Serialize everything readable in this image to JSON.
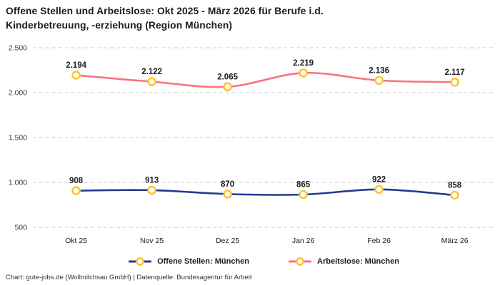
{
  "header": {
    "title_line1": "Offene Stellen und Arbeitslose: Okt 2025 - März 2026 für Berufe i.d.",
    "title_line2": "Kinderbetreuung, -erziehung (Region München)"
  },
  "footer": {
    "text": "Chart: gute-jobs.de (Wollmilchsau GmbH) | Datenquelle: Bundesagentur für Arbeit"
  },
  "chart_data": {
    "type": "line",
    "title": "Offene Stellen und Arbeitslose: Okt 2025 - März 2026 für Berufe i.d. Kinderbetreuung, -erziehung (Region München)",
    "categories": [
      "Okt 25",
      "Nov 25",
      "Dez 25",
      "Jan 26",
      "Feb 26",
      "März 26"
    ],
    "series": [
      {
        "name": "Offene Stellen: München",
        "values": [
          908,
          913,
          870,
          865,
          922,
          858
        ],
        "labels": [
          "908",
          "913",
          "870",
          "865",
          "922",
          "858"
        ],
        "color": "#233a8f"
      },
      {
        "name": "Arbeitslose: München",
        "values": [
          2194,
          2122,
          2065,
          2219,
          2136,
          2117
        ],
        "labels": [
          "2.194",
          "2.122",
          "2.065",
          "2.219",
          "2.136",
          "2.117"
        ],
        "color": "#f97183"
      }
    ],
    "marker": {
      "fill": "#ffffff",
      "stroke": "#ffc432"
    },
    "y_axis": {
      "min": 500,
      "max": 2500,
      "ticks": [
        500,
        1000,
        1500,
        2000,
        2500
      ],
      "tick_labels": [
        "500",
        "1.000",
        "1.500",
        "2.000",
        "2.500"
      ]
    },
    "grid": "horizontal dashed",
    "legend_position": "bottom"
  }
}
